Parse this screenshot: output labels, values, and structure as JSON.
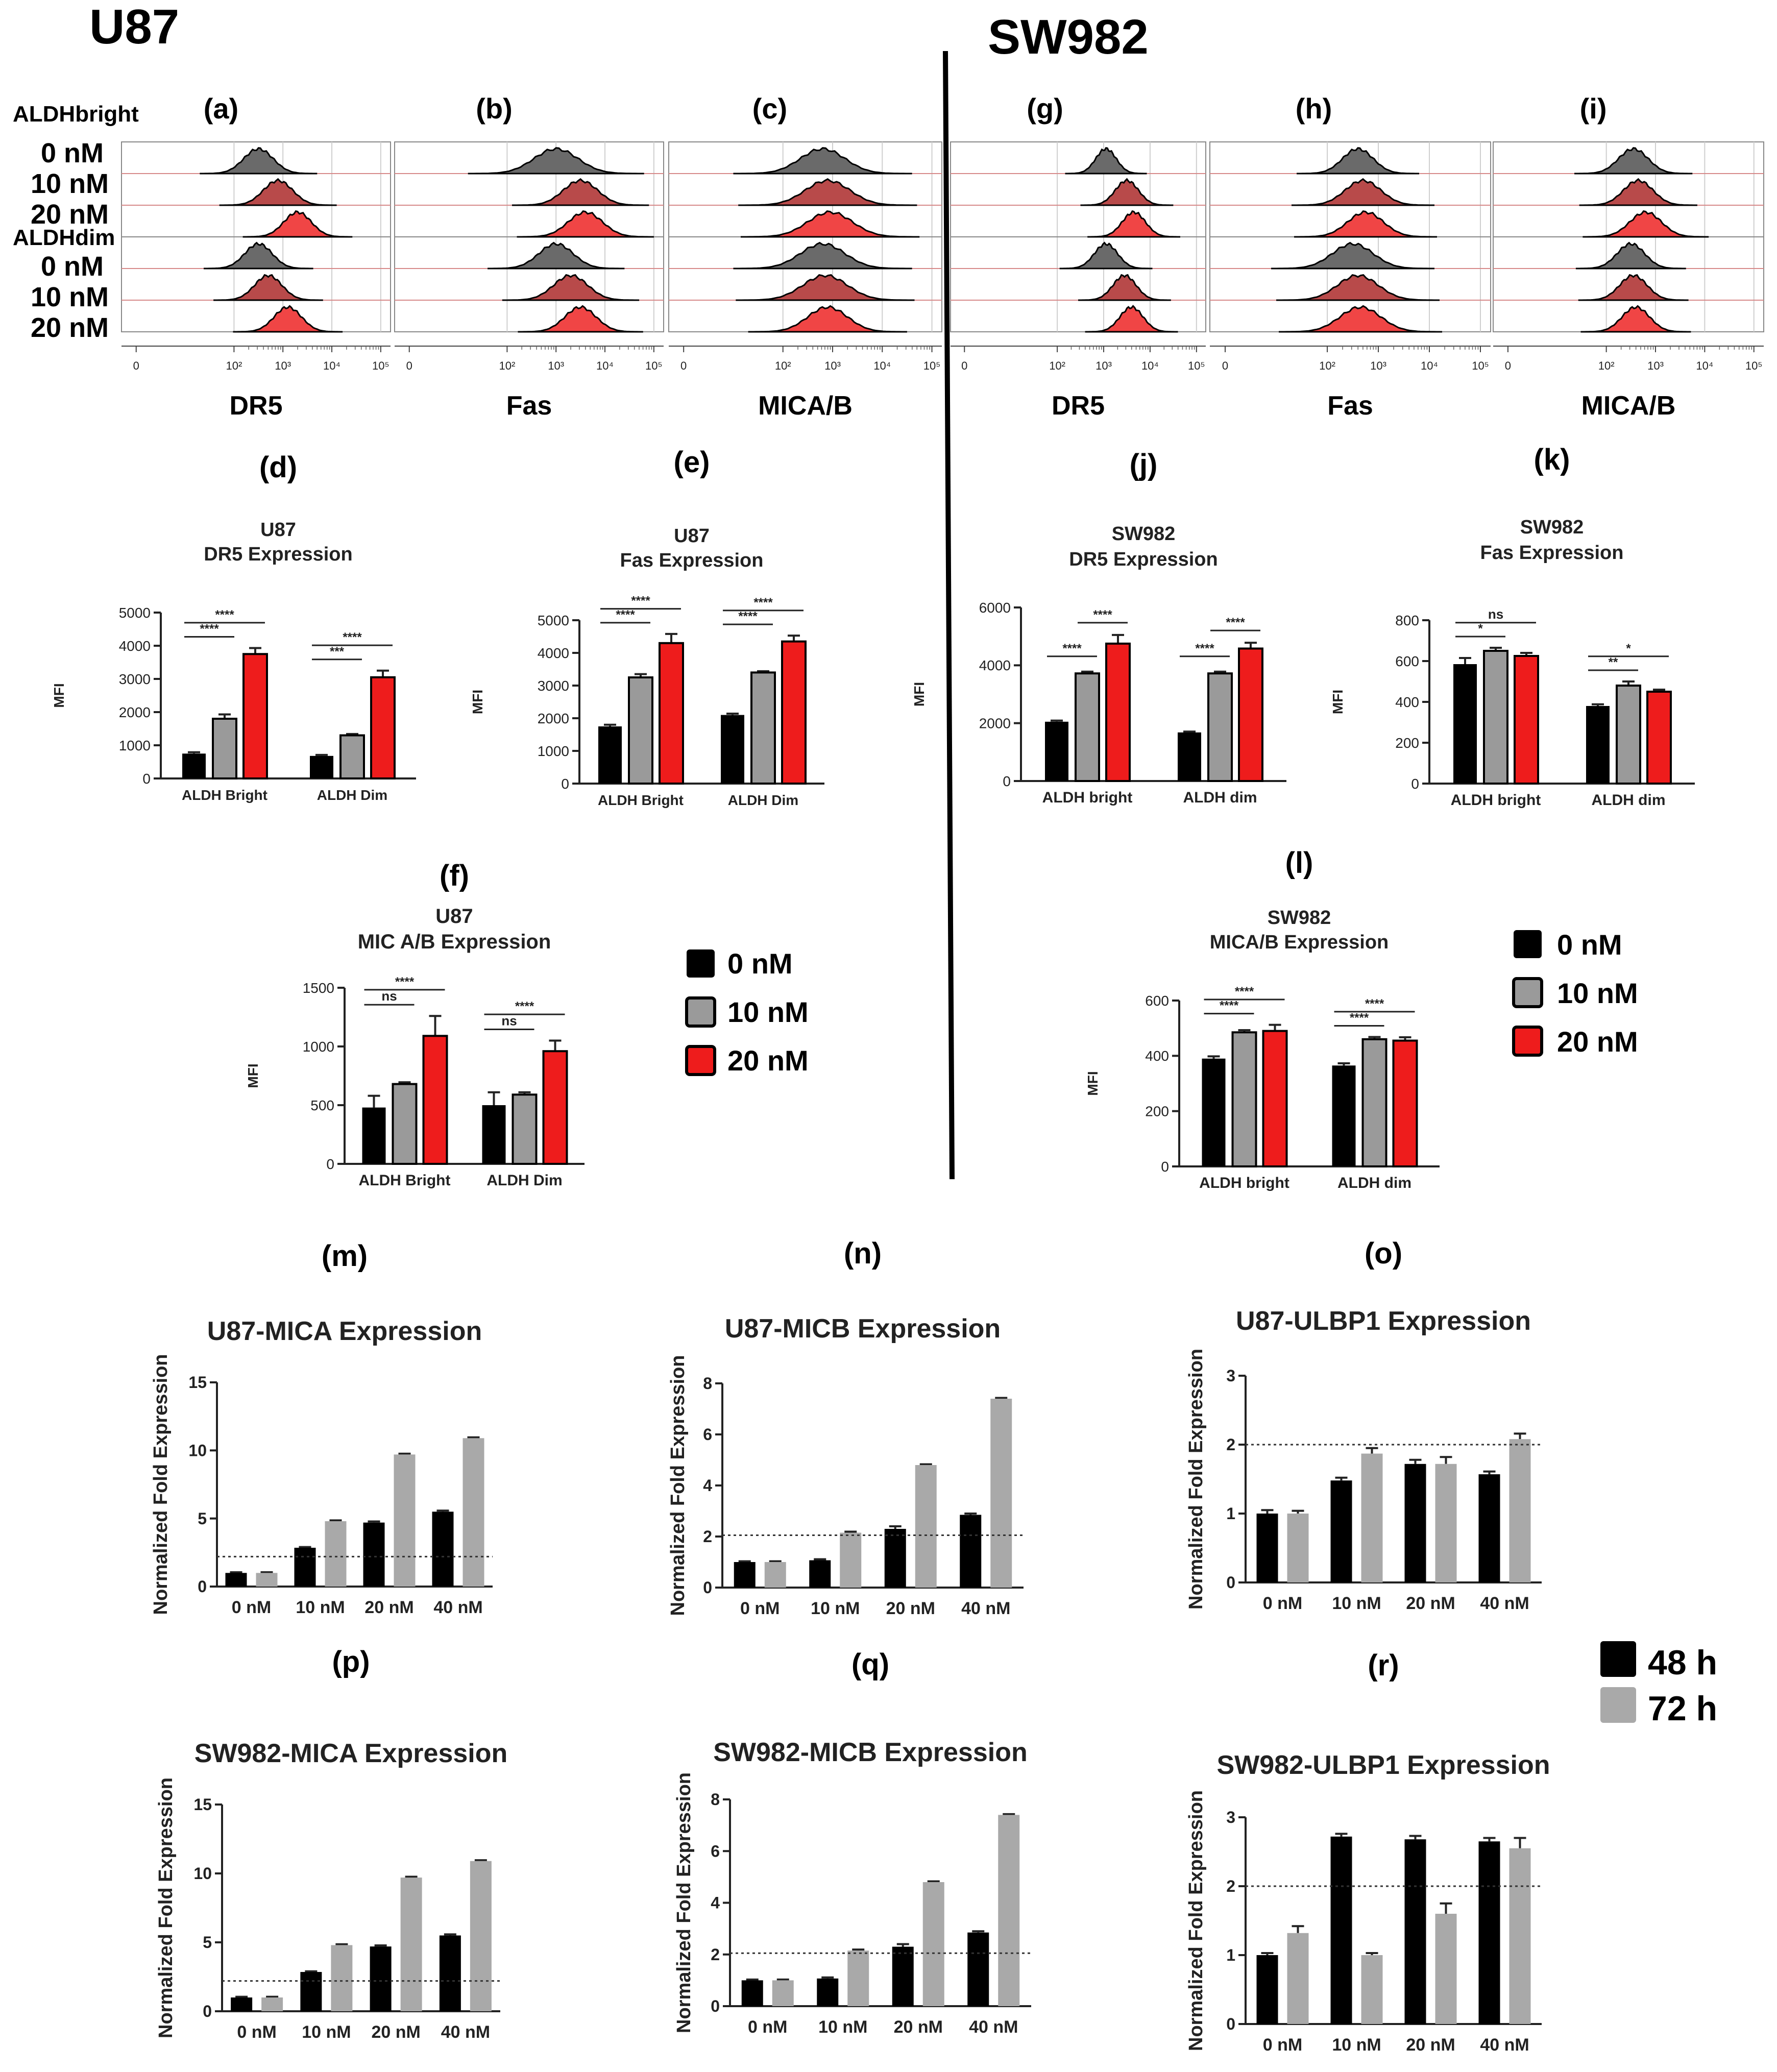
{
  "figure": {
    "left_title": "U87",
    "right_title": "SW982"
  },
  "histograms": {
    "row_labels": [
      "ALDHbright",
      "0 nM",
      "10 nM",
      "20 nM",
      "ALDHdim",
      "0 nM",
      "10 nM",
      "20 nM"
    ],
    "axis_ticks": [
      "0",
      "10²",
      "10³",
      "10⁴",
      "10⁵"
    ],
    "panels": [
      {
        "letter": "(a)",
        "marker": "DR5",
        "peaks": [
          2.5,
          2.9,
          3.3,
          2.5,
          2.7,
          3.1
        ],
        "widths": [
          0.3,
          0.3,
          0.28,
          0.28,
          0.28,
          0.28
        ]
      },
      {
        "letter": "(b)",
        "marker": "Fas",
        "peaks": [
          3.0,
          3.5,
          3.6,
          3.0,
          3.3,
          3.5
        ],
        "widths": [
          0.45,
          0.35,
          0.35,
          0.35,
          0.35,
          0.32
        ]
      },
      {
        "letter": "(c)",
        "marker": "MICA/B",
        "peaks": [
          2.8,
          2.9,
          2.95,
          2.8,
          2.85,
          2.9
        ],
        "widths": [
          0.45,
          0.45,
          0.45,
          0.45,
          0.45,
          0.4
        ]
      },
      {
        "letter": "(g)",
        "marker": "DR5",
        "peaks": [
          3.05,
          3.5,
          3.65,
          3.05,
          3.45,
          3.6
        ],
        "widths": [
          0.22,
          0.25,
          0.25,
          0.25,
          0.25,
          0.25
        ]
      },
      {
        "letter": "(h)",
        "marker": "Fas",
        "peaks": [
          2.6,
          2.7,
          2.75,
          2.5,
          2.6,
          2.65
        ],
        "widths": [
          0.3,
          0.35,
          0.35,
          0.4,
          0.4,
          0.4
        ]
      },
      {
        "letter": "(i)",
        "marker": "MICA/B",
        "peaks": [
          2.55,
          2.65,
          2.8,
          2.5,
          2.55,
          2.6
        ],
        "widths": [
          0.3,
          0.3,
          0.32,
          0.28,
          0.28,
          0.28
        ]
      }
    ]
  },
  "legends": {
    "treatment": [
      "0 nM",
      "10 nM",
      "20 nM"
    ],
    "time": [
      "48 h",
      "72 h"
    ]
  },
  "colors": {
    "black": "#000000",
    "gray": "#9a9a9a",
    "red": "#ee1c1c",
    "light_gray": "#a9a9a9",
    "hist_gray": "#6a6a6a",
    "hist_red": "#b84a4a",
    "hist_bright_red": "#f04545"
  },
  "chart_data": [
    {
      "id": "d",
      "letter": "(d)",
      "type": "bar",
      "title": [
        "U87",
        "DR5 Expression"
      ],
      "ylabel": "MFI",
      "categories": [
        "ALDH Bright",
        "ALDH Dim"
      ],
      "ylim": [
        0,
        5000
      ],
      "yticks": [
        0,
        1000,
        2000,
        3000,
        4000,
        5000
      ],
      "series": [
        {
          "name": "0 nM",
          "values": [
            750,
            680
          ],
          "errors": [
            40,
            30
          ]
        },
        {
          "name": "10 nM",
          "values": [
            1800,
            1300
          ],
          "errors": [
            130,
            40
          ]
        },
        {
          "name": "20 nM",
          "values": [
            3750,
            3050
          ],
          "errors": [
            180,
            200
          ]
        }
      ],
      "significance": [
        {
          "group": 0,
          "from": 0,
          "to": 1,
          "label": "****"
        },
        {
          "group": 0,
          "from": 0,
          "to": 2,
          "label": "****"
        },
        {
          "group": 1,
          "from": 0,
          "to": 1,
          "label": "***"
        },
        {
          "group": 1,
          "from": 0,
          "to": 2,
          "label": "****"
        }
      ]
    },
    {
      "id": "e",
      "letter": "(e)",
      "type": "bar",
      "title": [
        "U87",
        "Fas Expression"
      ],
      "ylabel": "MFI",
      "categories": [
        "ALDH Bright",
        "ALDH Dim"
      ],
      "ylim": [
        0,
        5000
      ],
      "yticks": [
        0,
        1000,
        2000,
        3000,
        4000,
        5000
      ],
      "series": [
        {
          "name": "0 nM",
          "values": [
            1750,
            2100
          ],
          "errors": [
            50,
            40
          ]
        },
        {
          "name": "10 nM",
          "values": [
            3250,
            3400
          ],
          "errors": [
            100,
            40
          ]
        },
        {
          "name": "20 nM",
          "values": [
            4300,
            4350
          ],
          "errors": [
            280,
            180
          ]
        }
      ],
      "significance": [
        {
          "group": 0,
          "from": 0,
          "to": 1,
          "label": "****"
        },
        {
          "group": 0,
          "from": 0,
          "to": 2,
          "label": "****"
        },
        {
          "group": 1,
          "from": 0,
          "to": 1,
          "label": "****"
        },
        {
          "group": 1,
          "from": 0,
          "to": 2,
          "label": "****"
        }
      ]
    },
    {
      "id": "f",
      "letter": "(f)",
      "type": "bar",
      "title": [
        "U87",
        "MIC A/B Expression"
      ],
      "ylabel": "MFI",
      "categories": [
        "ALDH Bright",
        "ALDH Dim"
      ],
      "ylim": [
        0,
        1500
      ],
      "yticks": [
        0,
        500,
        1000,
        1500
      ],
      "series": [
        {
          "name": "0 nM",
          "values": [
            480,
            500
          ],
          "errors": [
            100,
            110
          ]
        },
        {
          "name": "10 nM",
          "values": [
            680,
            590
          ],
          "errors": [
            15,
            20
          ]
        },
        {
          "name": "20 nM",
          "values": [
            1090,
            960
          ],
          "errors": [
            170,
            90
          ]
        }
      ],
      "significance": [
        {
          "group": 0,
          "from": 0,
          "to": 1,
          "label": "ns"
        },
        {
          "group": 0,
          "from": 0,
          "to": 2,
          "label": "****"
        },
        {
          "group": 1,
          "from": 0,
          "to": 1,
          "label": "ns"
        },
        {
          "group": 1,
          "from": 0,
          "to": 2,
          "label": "****"
        }
      ]
    },
    {
      "id": "j",
      "letter": "(j)",
      "type": "bar",
      "title": [
        "SW982",
        "DR5 Expression"
      ],
      "ylabel": "MFI",
      "categories": [
        "ALDH bright",
        "ALDH dim"
      ],
      "ylim": [
        0,
        6000
      ],
      "yticks": [
        0,
        2000,
        4000,
        6000
      ],
      "series": [
        {
          "name": "0 nM",
          "values": [
            2050,
            1680
          ],
          "errors": [
            40,
            30
          ]
        },
        {
          "name": "10 nM",
          "values": [
            3720,
            3720
          ],
          "errors": [
            60,
            60
          ]
        },
        {
          "name": "20 nM",
          "values": [
            4750,
            4580
          ],
          "errors": [
            300,
            200
          ]
        }
      ],
      "significance": [
        {
          "group": 0,
          "from": 0,
          "to": 1,
          "label": "****"
        },
        {
          "group": 0,
          "from": 1,
          "to": 2,
          "label": "****"
        },
        {
          "group": 1,
          "from": 0,
          "to": 1,
          "label": "****"
        },
        {
          "group": 1,
          "from": 1,
          "to": 2,
          "label": "****"
        }
      ]
    },
    {
      "id": "k",
      "letter": "(k)",
      "type": "bar",
      "title": [
        "SW982",
        "Fas Expression"
      ],
      "ylabel": "MFI",
      "categories": [
        "ALDH bright",
        "ALDH dim"
      ],
      "ylim": [
        0,
        800
      ],
      "yticks": [
        0,
        200,
        400,
        600,
        800
      ],
      "series": [
        {
          "name": "0 nM",
          "values": [
            585,
            380
          ],
          "errors": [
            30,
            8
          ]
        },
        {
          "name": "10 nM",
          "values": [
            650,
            480
          ],
          "errors": [
            15,
            20
          ]
        },
        {
          "name": "20 nM",
          "values": [
            625,
            450
          ],
          "errors": [
            15,
            10
          ]
        }
      ],
      "significance": [
        {
          "group": 0,
          "from": 0,
          "to": 1,
          "label": "*"
        },
        {
          "group": 0,
          "from": 0,
          "to": 2,
          "label": "ns"
        },
        {
          "group": 1,
          "from": 0,
          "to": 1,
          "label": "**"
        },
        {
          "group": 1,
          "from": 0,
          "to": 2,
          "label": "*"
        }
      ]
    },
    {
      "id": "l",
      "letter": "(l)",
      "type": "bar",
      "title": [
        "SW982",
        "MICA/B Expression"
      ],
      "ylabel": "MFI",
      "categories": [
        "ALDH bright",
        "ALDH dim"
      ],
      "ylim": [
        0,
        600
      ],
      "yticks": [
        0,
        200,
        400,
        600
      ],
      "series": [
        {
          "name": "0 nM",
          "values": [
            390,
            365
          ],
          "errors": [
            8,
            8
          ]
        },
        {
          "name": "10 nM",
          "values": [
            485,
            460
          ],
          "errors": [
            8,
            8
          ]
        },
        {
          "name": "20 nM",
          "values": [
            490,
            455
          ],
          "errors": [
            22,
            12
          ]
        }
      ],
      "significance": [
        {
          "group": 0,
          "from": 0,
          "to": 1,
          "label": "****"
        },
        {
          "group": 0,
          "from": 0,
          "to": 2,
          "label": "****"
        },
        {
          "group": 1,
          "from": 0,
          "to": 1,
          "label": "****"
        },
        {
          "group": 1,
          "from": 0,
          "to": 2,
          "label": "****"
        }
      ]
    },
    {
      "id": "m",
      "letter": "(m)",
      "type": "bar",
      "title": [
        "U87-MICA Expression"
      ],
      "ylabel": "Normalized Fold Expression",
      "categories": [
        "0 nM",
        "10 nM",
        "20 nM",
        "40 nM"
      ],
      "ylim": [
        0,
        15
      ],
      "yticks": [
        0,
        5,
        10,
        15
      ],
      "threshold": 2.2,
      "series": [
        {
          "name": "48 h",
          "values": [
            1.0,
            2.85,
            4.7,
            5.5
          ],
          "errors": [
            0.05,
            0.05,
            0.08,
            0.08
          ]
        },
        {
          "name": "72 h",
          "values": [
            1.0,
            4.8,
            9.7,
            10.9
          ],
          "errors": [
            0.05,
            0.06,
            0.06,
            0.06
          ]
        }
      ]
    },
    {
      "id": "n",
      "letter": "(n)",
      "type": "bar",
      "title": [
        "U87-MICB Expression"
      ],
      "ylabel": "Normalized Fold Expression",
      "categories": [
        "0 nM",
        "10 nM",
        "20 nM",
        "40 nM"
      ],
      "ylim": [
        0,
        8
      ],
      "yticks": [
        0,
        2,
        4,
        6,
        8
      ],
      "threshold": 2.05,
      "series": [
        {
          "name": "48 h",
          "values": [
            1.0,
            1.07,
            2.3,
            2.85
          ],
          "errors": [
            0.03,
            0.04,
            0.1,
            0.05
          ]
        },
        {
          "name": "72 h",
          "values": [
            1.0,
            2.15,
            4.8,
            7.4
          ],
          "errors": [
            0.03,
            0.04,
            0.03,
            0.03
          ]
        }
      ]
    },
    {
      "id": "o",
      "letter": "(o)",
      "type": "bar",
      "title": [
        "U87-ULBP1 Expression"
      ],
      "ylabel": "Normalized Fold Expression",
      "categories": [
        "0 nM",
        "10 nM",
        "20 nM",
        "40 nM"
      ],
      "ylim": [
        0,
        3
      ],
      "yticks": [
        0,
        1,
        2,
        3
      ],
      "threshold": 2.0,
      "series": [
        {
          "name": "48 h",
          "values": [
            1.0,
            1.48,
            1.72,
            1.57
          ],
          "errors": [
            0.05,
            0.04,
            0.06,
            0.04
          ]
        },
        {
          "name": "72 h",
          "values": [
            1.0,
            1.87,
            1.72,
            2.08
          ],
          "errors": [
            0.04,
            0.08,
            0.1,
            0.08
          ]
        }
      ]
    },
    {
      "id": "p",
      "letter": "(p)",
      "type": "bar",
      "title": [
        "SW982-MICA Expression"
      ],
      "ylabel": "Normalized Fold Expression",
      "categories": [
        "0 nM",
        "10 nM",
        "20 nM",
        "40 nM"
      ],
      "ylim": [
        0,
        15
      ],
      "yticks": [
        0,
        5,
        10,
        15
      ],
      "threshold": 2.2,
      "series": [
        {
          "name": "48 h",
          "values": [
            1.0,
            2.85,
            4.7,
            5.5
          ],
          "errors": [
            0.05,
            0.05,
            0.08,
            0.08
          ]
        },
        {
          "name": "72 h",
          "values": [
            1.0,
            4.8,
            9.7,
            10.9
          ],
          "errors": [
            0.05,
            0.06,
            0.06,
            0.06
          ]
        }
      ]
    },
    {
      "id": "q",
      "letter": "(q)",
      "type": "bar",
      "title": [
        "SW982-MICB Expression"
      ],
      "ylabel": "Normalized Fold Expression",
      "categories": [
        "0 nM",
        "10 nM",
        "20 nM",
        "40 nM"
      ],
      "ylim": [
        0,
        8
      ],
      "yticks": [
        0,
        2,
        4,
        6,
        8
      ],
      "threshold": 2.05,
      "series": [
        {
          "name": "48 h",
          "values": [
            1.0,
            1.07,
            2.3,
            2.85
          ],
          "errors": [
            0.03,
            0.04,
            0.1,
            0.05
          ]
        },
        {
          "name": "72 h",
          "values": [
            1.0,
            2.15,
            4.8,
            7.4
          ],
          "errors": [
            0.03,
            0.04,
            0.03,
            0.03
          ]
        }
      ]
    },
    {
      "id": "r",
      "letter": "(r)",
      "type": "bar",
      "title": [
        "SW982-ULBP1 Expression"
      ],
      "ylabel": "Normalized Fold Expression",
      "categories": [
        "0 nM",
        "10 nM",
        "20 nM",
        "40 nM"
      ],
      "ylim": [
        0,
        3
      ],
      "yticks": [
        0,
        1,
        2,
        3
      ],
      "threshold": 2.0,
      "series": [
        {
          "name": "48 h",
          "values": [
            1.0,
            2.72,
            2.68,
            2.65
          ],
          "errors": [
            0.03,
            0.04,
            0.05,
            0.05
          ]
        },
        {
          "name": "72 h",
          "values": [
            1.32,
            1.0,
            1.6,
            2.55
          ],
          "errors": [
            0.1,
            0.03,
            0.15,
            0.15
          ]
        }
      ]
    }
  ]
}
